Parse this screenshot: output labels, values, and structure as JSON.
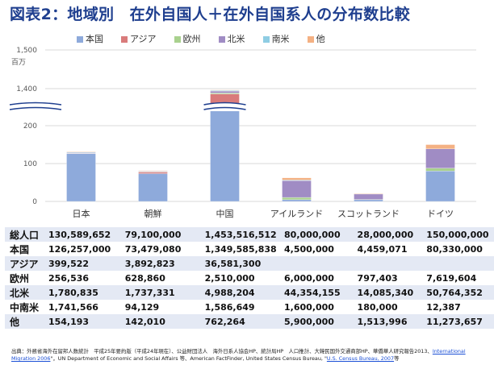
{
  "title": "図表2：地域別　在外自国人＋在外自国系人の分布数比較",
  "legend": [
    {
      "name": "本国",
      "color": "#8eaadb"
    },
    {
      "name": "アジア",
      "color": "#d97b7b"
    },
    {
      "name": "欧州",
      "color": "#a9d18e"
    },
    {
      "name": "北米",
      "color": "#a08cc4"
    },
    {
      "name": "南米",
      "color": "#8fcde3"
    },
    {
      "name": "他",
      "color": "#f4b183"
    }
  ],
  "chart_data": {
    "type": "bar",
    "stacked": true,
    "ylabel": "百万",
    "y_ticks": [
      "0",
      "100",
      "200",
      "1,400",
      "1,500"
    ],
    "y_break": "between 200 and 1,400",
    "grid": true,
    "legend_position": "top",
    "categories": [
      "日本",
      "朝鮮",
      "中国",
      "アイルランド",
      "スコットランド",
      "ドイツ"
    ],
    "series": [
      {
        "name": "本国",
        "values": [
          126.257,
          73.479,
          1349.586,
          4.5,
          4.459,
          80.33
        ]
      },
      {
        "name": "アジア",
        "values": [
          0.4,
          3.893,
          36.581,
          0,
          0,
          0
        ]
      },
      {
        "name": "欧州",
        "values": [
          0.257,
          0.629,
          2.51,
          6.0,
          0.797,
          7.62
        ]
      },
      {
        "name": "北米",
        "values": [
          1.781,
          1.737,
          4.988,
          44.354,
          14.085,
          50.764
        ]
      },
      {
        "name": "南米",
        "values": [
          1.742,
          0.094,
          1.587,
          1.6,
          0.18,
          0.012
        ]
      },
      {
        "name": "他",
        "values": [
          0.154,
          0.142,
          0.762,
          5.9,
          1.514,
          11.274
        ]
      }
    ]
  },
  "table": {
    "rows": [
      {
        "label": "総人口",
        "values": [
          "130,589,652",
          "79,100,000",
          "1,453,516,512",
          "80,000,000",
          "28,000,000",
          "150,000,000"
        ]
      },
      {
        "label": "本国",
        "values": [
          "126,257,000",
          "73,479,080",
          "1,349,585,838",
          "4,500,000",
          "4,459,071",
          "80,330,000"
        ]
      },
      {
        "label": "アジア",
        "values": [
          "399,522",
          "3,892,823",
          "36,581,300",
          "",
          "",
          ""
        ]
      },
      {
        "label": "欧州",
        "values": [
          "256,536",
          "628,860",
          "2,510,000",
          "6,000,000",
          "797,403",
          "7,619,604"
        ]
      },
      {
        "label": "北米",
        "values": [
          "1,780,835",
          "1,737,331",
          "4,988,204",
          "44,354,155",
          "14,085,340",
          "50,764,352"
        ]
      },
      {
        "label": "中南米",
        "values": [
          "1,741,566",
          "94,129",
          "1,586,649",
          "1,600,000",
          "180,000",
          "12,387"
        ]
      },
      {
        "label": "他",
        "values": [
          "154,193",
          "142,010",
          "762,264",
          "5,900,000",
          "1,513,996",
          "11,273,657"
        ]
      }
    ]
  },
  "source": {
    "text": "出典：外務省海外在留邦人数統計　平成25年要約版（平成24年現在）、公益財団法人　海外日系人協会HP、統計局HP　人口推計、大韓民国外交通商部HP、華僑華人研究報告2013、",
    "link1": "International Migration 2006",
    "text2": "\"，UN Department of Economic and Social Affairs 等、American FactFinder, United States Census Bureau,  \"",
    "link2": "U.S. Census Bureau, 2007",
    "text3": "等"
  }
}
